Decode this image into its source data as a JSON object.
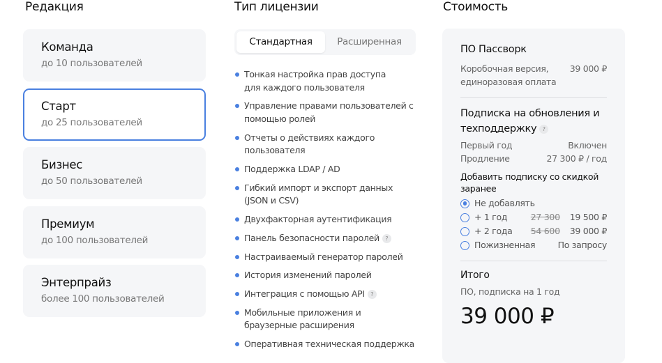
{
  "edition": {
    "heading": "Редакция",
    "items": [
      {
        "title": "Команда",
        "subtitle": "до 10 пользователей",
        "selected": false
      },
      {
        "title": "Старт",
        "subtitle": "до 25 пользователей",
        "selected": true
      },
      {
        "title": "Бизнес",
        "subtitle": "до 50 пользователей",
        "selected": false
      },
      {
        "title": "Премиум",
        "subtitle": "до 100 пользователей",
        "selected": false
      },
      {
        "title": "Энтерпрайз",
        "subtitle": "более 100 пользователей",
        "selected": false
      }
    ]
  },
  "license": {
    "heading": "Тип лицензии",
    "tabs": [
      "Стандартная",
      "Расширенная"
    ],
    "active_tab": 0,
    "features": [
      {
        "text": "Тонкая настройка прав доступа\nдля каждого пользователя"
      },
      {
        "text": "Управление правами пользователей с помощью ролей"
      },
      {
        "text": "Отчеты о действиях каждого пользователя"
      },
      {
        "text": "Поддержка LDAP / AD"
      },
      {
        "text": "Гибкий импорт и экспорт данных (JSON и CSV)"
      },
      {
        "text": "Двухфакторная аутентификация"
      },
      {
        "text": "Панель безопасности паролей",
        "help": "?"
      },
      {
        "text": "Настраиваемый генератор паролей"
      },
      {
        "text": "История изменений паролей"
      },
      {
        "text": "Интеграция с помощью API",
        "help": "?"
      },
      {
        "text": "Мобильные приложения и браузерные расширения"
      },
      {
        "text": "Оперативная техническая поддержка"
      }
    ]
  },
  "cost": {
    "heading": "Стоимость",
    "software": {
      "title": "ПО Пассворк",
      "label": "Коробочная версия, единоразовая оплата",
      "price": "39 000 ₽"
    },
    "subscription": {
      "title": "Подписка на обновления и техподдержку",
      "help": "?",
      "rows": [
        {
          "label": "Первый год",
          "value": "Включен"
        },
        {
          "label": "Продление",
          "value": "27 300 ₽ / год"
        }
      ],
      "addon_title": "Добавить подписку со скидкой заранее",
      "options": [
        {
          "label": "Не добавлять",
          "old": "",
          "price": "",
          "selected": true
        },
        {
          "label": "+ 1 год",
          "old": "27 300",
          "price": "19 500 ₽",
          "selected": false
        },
        {
          "label": "+ 2 года",
          "old": "54 600",
          "price": "39 000 ₽",
          "selected": false
        },
        {
          "label": "Пожизненная",
          "old": "",
          "price": "По запросу",
          "selected": false
        }
      ]
    },
    "total": {
      "title": "Итого",
      "label": "ПО, подписка на 1 год",
      "amount": "39 000 ₽"
    }
  },
  "colors": {
    "accent": "#4a80e0",
    "card_bg": "#f5f6f8"
  }
}
